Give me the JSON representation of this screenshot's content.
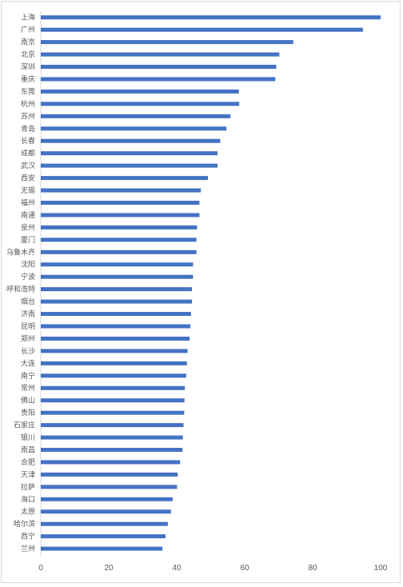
{
  "chart_data": {
    "type": "bar",
    "orientation": "horizontal",
    "title": "",
    "xlabel": "",
    "ylabel": "",
    "categories": [
      "上海",
      "广州",
      "南京",
      "北京",
      "深圳",
      "重庆",
      "东莞",
      "杭州",
      "苏州",
      "青岛",
      "长春",
      "成都",
      "武汉",
      "西安",
      "无锡",
      "福州",
      "南通",
      "泉州",
      "厦门",
      "乌鲁木齐",
      "沈阳",
      "宁波",
      "呼和浩特",
      "烟台",
      "济南",
      "昆明",
      "郑州",
      "长沙",
      "大连",
      "南宁",
      "常州",
      "佛山",
      "贵阳",
      "石家庄",
      "银川",
      "南昌",
      "合肥",
      "天津",
      "拉萨",
      "海口",
      "太原",
      "哈尔滨",
      "西宁",
      "兰州"
    ],
    "values": [
      100,
      94.8,
      74.3,
      70.2,
      69.3,
      69.0,
      58.3,
      58.4,
      55.8,
      54.6,
      52.8,
      52.0,
      52.0,
      49.2,
      47.1,
      46.7,
      46.7,
      46.0,
      45.8,
      45.8,
      44.8,
      44.8,
      44.5,
      44.5,
      44.2,
      44.0,
      43.8,
      43.2,
      43.0,
      42.8,
      42.4,
      42.3,
      42.2,
      42.0,
      41.8,
      41.7,
      41.0,
      40.3,
      40.1,
      38.8,
      38.3,
      37.4,
      36.7,
      35.8
    ],
    "xlim": [
      0,
      100
    ],
    "xticks": [
      "0",
      "20",
      "40",
      "60",
      "80",
      "100"
    ],
    "grid": false,
    "legend": "none",
    "bar_color": "#4472c4"
  }
}
